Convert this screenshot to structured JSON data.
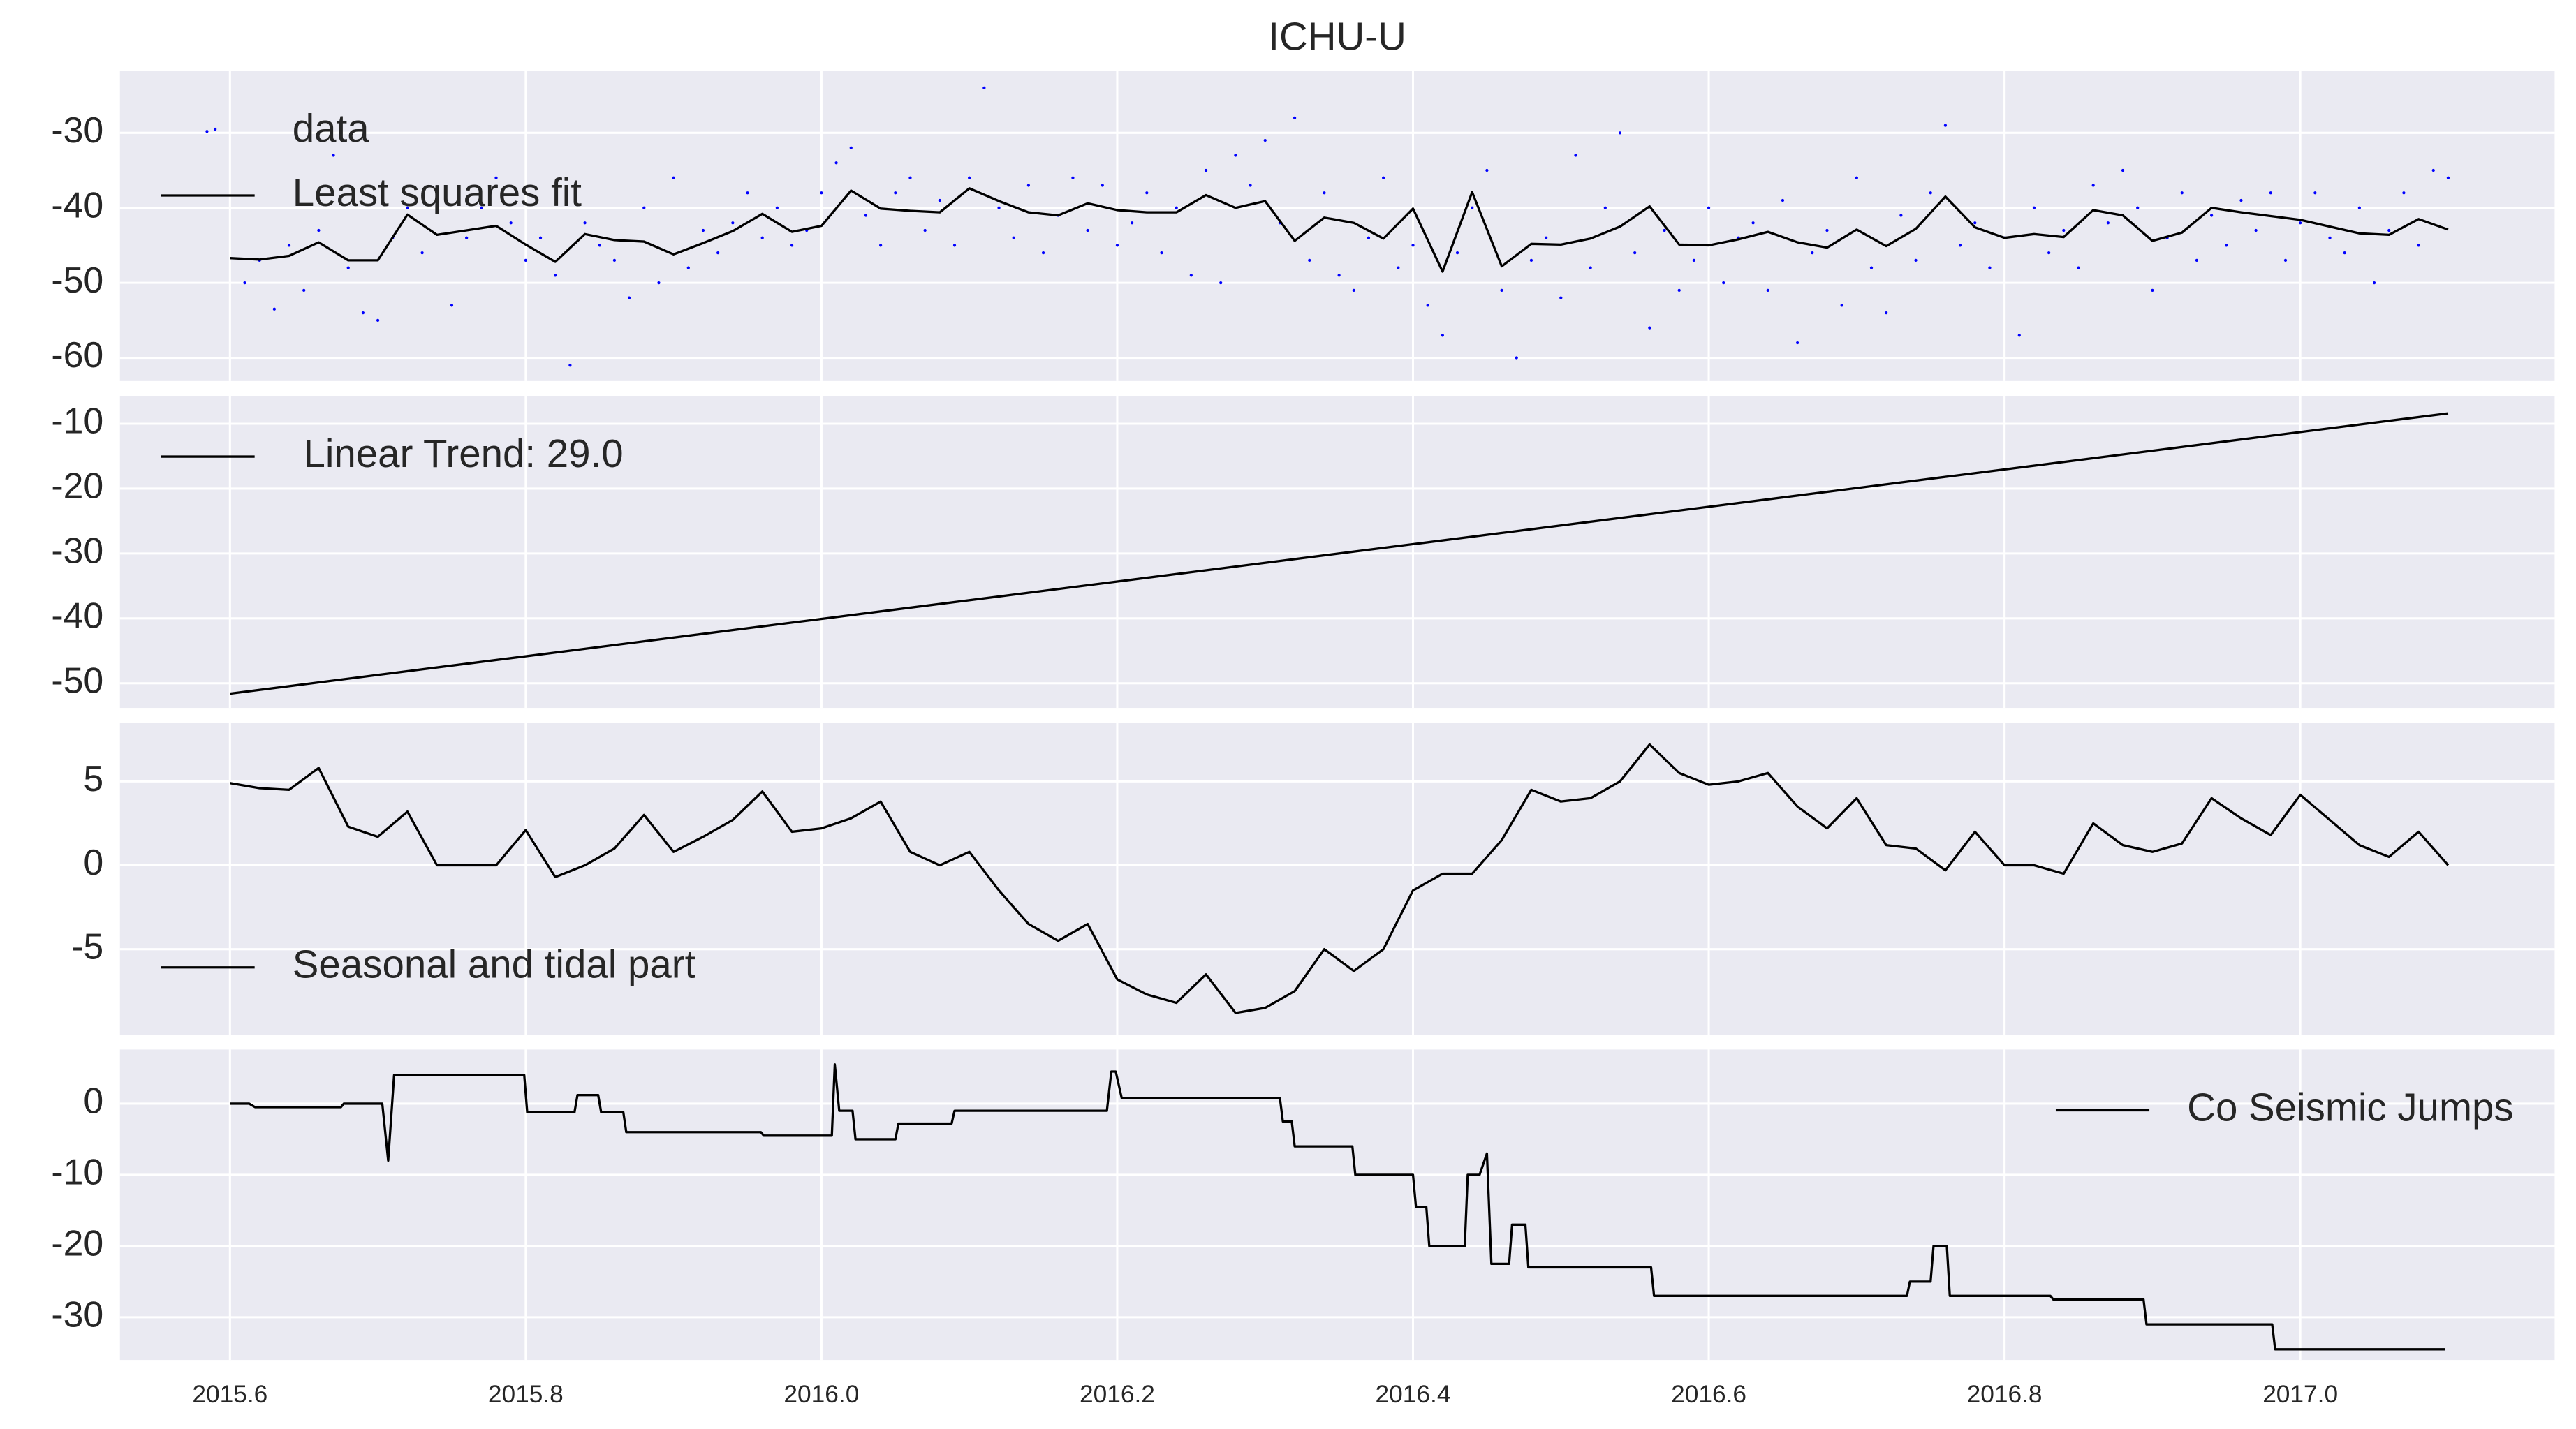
{
  "chart_data": [
    {
      "type": "line",
      "title": "ICHU-U",
      "legend": "upper left",
      "grid": true,
      "xtick_labels": false,
      "xlim": [
        2015.5256,
        2017.172
      ],
      "ylim": [
        -63.1,
        -21.7
      ],
      "xticks": [
        2015.6,
        2015.8,
        {
          "value": 2016,
          "label": "2016.0"
        },
        2016.2,
        2016.4,
        2016.6,
        2016.8,
        {
          "value": 2017,
          "label": "2017.0"
        }
      ],
      "yticks": [
        -30,
        -40,
        -50,
        -60
      ],
      "series": [
        {
          "name": "data",
          "color": "#0000ff",
          "style": "points",
          "x": [
            2015.59,
            2015.61,
            2015.62,
            2015.63,
            2015.64,
            2015.65,
            2015.66,
            2015.67,
            2015.68,
            2015.69,
            2015.7,
            2015.71,
            2015.72,
            2015.73,
            2015.74,
            2015.75,
            2015.76,
            2015.77,
            2015.78,
            2015.79,
            2015.8,
            2015.81,
            2015.82,
            2015.83,
            2015.84,
            2015.85,
            2015.86,
            2015.87,
            2015.88,
            2015.89,
            2015.9,
            2015.91,
            2015.92,
            2015.93,
            2015.94,
            2015.95,
            2015.96,
            2015.97,
            2015.98,
            2015.99,
            2016.0,
            2016.01,
            2016.02,
            2016.03,
            2016.04,
            2016.05,
            2016.06,
            2016.07,
            2016.08,
            2016.09,
            2016.1,
            2016.11,
            2016.12,
            2016.13,
            2016.14,
            2016.15,
            2016.16,
            2016.17,
            2016.18,
            2016.19,
            2016.2,
            2016.21,
            2016.22,
            2016.23,
            2016.24,
            2016.25,
            2016.26,
            2016.27,
            2016.28,
            2016.29,
            2016.3,
            2016.31,
            2016.32,
            2016.33,
            2016.34,
            2016.35,
            2016.36,
            2016.37,
            2016.38,
            2016.39,
            2016.4,
            2016.41,
            2016.42,
            2016.43,
            2016.44,
            2016.45,
            2016.46,
            2016.47,
            2016.48,
            2016.49,
            2016.5,
            2016.51,
            2016.52,
            2016.53,
            2016.54,
            2016.55,
            2016.56,
            2016.57,
            2016.58,
            2016.59,
            2016.6,
            2016.61,
            2016.62,
            2016.63,
            2016.64,
            2016.65,
            2016.66,
            2016.67,
            2016.68,
            2016.69,
            2016.7,
            2016.71,
            2016.72,
            2016.73,
            2016.74,
            2016.75,
            2016.76,
            2016.77,
            2016.78,
            2016.79,
            2016.8,
            2016.81,
            2016.82,
            2016.83,
            2016.84,
            2016.85,
            2016.86,
            2016.87,
            2016.88,
            2016.89,
            2016.9,
            2016.91,
            2016.92,
            2016.93,
            2016.94,
            2016.95,
            2016.96,
            2016.97,
            2016.98,
            2016.99,
            2017.0,
            2017.01,
            2017.02,
            2017.03,
            2017.04,
            2017.05,
            2017.06,
            2017.07,
            2017.08,
            2017.09,
            2017.1
          ],
          "values": [
            -29.5,
            -50,
            -47,
            -53.5,
            -45,
            -51,
            -43,
            -33,
            -48,
            -54,
            -55,
            -44,
            -40,
            -46,
            -38,
            -53,
            -44,
            -40,
            -36,
            -42,
            -47,
            -44,
            -49,
            -61,
            -42,
            -45,
            -47,
            -52,
            -40,
            -50,
            -36,
            -48,
            -43,
            -46,
            -42,
            -38,
            -44,
            -40,
            -45,
            -43,
            -38,
            -34,
            -32,
            -41,
            -45,
            -38,
            -36,
            -43,
            -39,
            -45,
            -36,
            -24,
            -40,
            -44,
            -37,
            -46,
            -41,
            -36,
            -43,
            -37,
            -45,
            -42,
            -38,
            -46,
            -40,
            -49,
            -35,
            -50,
            -33,
            -37,
            -31,
            -42,
            -28,
            -47,
            -38,
            -49,
            -51,
            -44,
            -36,
            -48,
            -45,
            -53,
            -57,
            -46,
            -40,
            -35,
            -51,
            -60,
            -47,
            -44,
            -52,
            -33,
            -48,
            -40,
            -30,
            -46,
            -56,
            -43,
            -51,
            -47,
            -40,
            -50,
            -44,
            -42,
            -51,
            -39,
            -58,
            -46,
            -43,
            -53,
            -36,
            -48,
            -54,
            -41,
            -47,
            -38,
            -29,
            -45,
            -42,
            -48,
            -44,
            -57,
            -40,
            -46,
            -43,
            -48,
            -37,
            -42,
            -35,
            -40,
            -51,
            -44,
            -38,
            -47,
            -41,
            -45,
            -39,
            -43,
            -38,
            -47,
            -42,
            -38,
            -44,
            -46,
            -40,
            -50,
            -43,
            -38,
            -45,
            -35,
            -36
          ]
        },
        {
          "name": "Least squares fit",
          "color": "#000000",
          "style": "line",
          "x": [
            2015.6,
            2015.62,
            2015.64,
            2015.66,
            2015.68,
            2015.7,
            2015.72,
            2015.74,
            2015.76,
            2015.78,
            2015.8,
            2015.82,
            2015.84,
            2015.86,
            2015.88,
            2015.9,
            2015.92,
            2015.94,
            2015.96,
            2015.98,
            2016.0,
            2016.02,
            2016.04,
            2016.06,
            2016.08,
            2016.1,
            2016.12,
            2016.14,
            2016.16,
            2016.18,
            2016.2,
            2016.22,
            2016.24,
            2016.26,
            2016.28,
            2016.3,
            2016.32,
            2016.34,
            2016.36,
            2016.38,
            2016.4,
            2016.42,
            2016.44,
            2016.46,
            2016.48,
            2016.5,
            2016.52,
            2016.54,
            2016.56,
            2016.58,
            2016.6,
            2016.62,
            2016.64,
            2016.66,
            2016.68,
            2016.7,
            2016.72,
            2016.74,
            2016.76,
            2016.78,
            2016.8,
            2016.82,
            2016.84,
            2016.86,
            2016.88,
            2016.9,
            2016.92,
            2016.94,
            2016.96,
            2016.98,
            2017.0,
            2017.02,
            2017.04,
            2017.06,
            2017.08,
            2017.1
          ],
          "values": [
            -46.7,
            -46.9,
            -46.4,
            -44.6,
            -47.0,
            -47.0,
            -40.9,
            -43.6,
            -43.0,
            -42.4,
            -44.9,
            -47.2,
            -43.5,
            -44.3,
            -44.5,
            -46.2,
            -44.7,
            -43.1,
            -40.8,
            -43.2,
            -42.4,
            -37.7,
            -40.1,
            -40.4,
            -40.6,
            -37.4,
            -39.1,
            -40.6,
            -41.0,
            -39.4,
            -40.3,
            -40.6,
            -40.6,
            -38.3,
            -40.0,
            -39.1,
            -44.4,
            -41.3,
            -42.0,
            -44.1,
            -40.1,
            -48.5,
            -37.9,
            -47.8,
            -44.8,
            -44.9,
            -44.1,
            -42.5,
            -39.8,
            -44.9,
            -45.0,
            -44.2,
            -43.2,
            -44.6,
            -45.3,
            -42.9,
            -45.1,
            -42.8,
            -38.5,
            -42.6,
            -44.0,
            -43.5,
            -43.9,
            -40.3,
            -41.0,
            -44.4,
            -43.3,
            -40.0,
            -40.6,
            -41.1,
            -41.6,
            -42.5,
            -43.4,
            -43.6,
            -41.5,
            -42.9
          ]
        }
      ]
    },
    {
      "type": "line",
      "legend": "upper left",
      "grid": true,
      "xtick_labels": false,
      "xlim": [
        2015.5256,
        2017.172
      ],
      "ylim": [
        -53.8,
        -5.7
      ],
      "xticks": [
        2015.6,
        2015.8,
        {
          "value": 2016,
          "label": "2016.0"
        },
        2016.2,
        2016.4,
        2016.6,
        2016.8,
        {
          "value": 2017,
          "label": "2017.0"
        }
      ],
      "yticks": [
        -10,
        -20,
        -30,
        -40,
        -50
      ],
      "series": [
        {
          "name": " Linear Trend: 29.0",
          "color": "#000000",
          "style": "line",
          "x": [
            2015.6,
            2017.1
          ],
          "values": [
            -51.6,
            -8.4
          ]
        }
      ]
    },
    {
      "type": "line",
      "legend": "lower left",
      "grid": true,
      "xtick_labels": false,
      "xlim": [
        2015.5256,
        2017.172
      ],
      "ylim": [
        -10.1,
        8.5
      ],
      "xticks": [
        2015.6,
        2015.8,
        {
          "value": 2016,
          "label": "2016.0"
        },
        2016.2,
        2016.4,
        2016.6,
        2016.8,
        {
          "value": 2017,
          "label": "2017.0"
        }
      ],
      "yticks": [
        5,
        0,
        -5
      ],
      "series": [
        {
          "name": "Seasonal and tidal part",
          "color": "#000000",
          "style": "line",
          "x": [
            2015.6,
            2015.62,
            2015.64,
            2015.66,
            2015.68,
            2015.7,
            2015.72,
            2015.74,
            2015.76,
            2015.78,
            2015.8,
            2015.82,
            2015.84,
            2015.86,
            2015.88,
            2015.9,
            2015.92,
            2015.94,
            2015.96,
            2015.98,
            2016.0,
            2016.02,
            2016.04,
            2016.06,
            2016.08,
            2016.1,
            2016.12,
            2016.14,
            2016.16,
            2016.18,
            2016.2,
            2016.22,
            2016.24,
            2016.26,
            2016.28,
            2016.3,
            2016.32,
            2016.34,
            2016.36,
            2016.38,
            2016.4,
            2016.42,
            2016.44,
            2016.46,
            2016.48,
            2016.5,
            2016.52,
            2016.54,
            2016.56,
            2016.58,
            2016.6,
            2016.62,
            2016.64,
            2016.66,
            2016.68,
            2016.7,
            2016.72,
            2016.74,
            2016.76,
            2016.78,
            2016.8,
            2016.82,
            2016.84,
            2016.86,
            2016.88,
            2016.9,
            2016.92,
            2016.94,
            2016.96,
            2016.98,
            2017.0,
            2017.02,
            2017.04,
            2017.06,
            2017.08,
            2017.1
          ],
          "values": [
            4.9,
            4.6,
            4.5,
            5.8,
            2.3,
            1.7,
            3.2,
            0.0,
            0.0,
            0.0,
            2.1,
            -0.7,
            0.0,
            1.0,
            3.0,
            0.8,
            1.7,
            2.7,
            4.4,
            2.0,
            2.2,
            2.8,
            3.8,
            0.8,
            0.0,
            0.8,
            -1.5,
            -3.5,
            -4.5,
            -3.5,
            -6.8,
            -7.7,
            -8.2,
            -6.5,
            -8.8,
            -8.5,
            -7.5,
            -5.0,
            -6.3,
            -5.0,
            -1.5,
            -0.5,
            -0.5,
            1.5,
            4.5,
            3.8,
            4.0,
            5.0,
            7.2,
            5.5,
            4.8,
            5.0,
            5.5,
            3.5,
            2.2,
            4.0,
            1.2,
            1.0,
            -0.3,
            2.0,
            0.0,
            0.0,
            -0.5,
            2.5,
            1.2,
            0.8,
            1.3,
            4.0,
            2.8,
            1.8,
            4.2,
            2.7,
            1.2,
            0.5,
            2.0,
            0.0
          ]
        }
      ]
    },
    {
      "type": "line",
      "legend": "upper right",
      "grid": true,
      "xtick_labels": true,
      "xlim": [
        2015.5256,
        2017.172
      ],
      "ylim": [
        -36.0,
        7.6
      ],
      "xticks": [
        2015.6,
        2015.8,
        {
          "value": 2016,
          "label": "2016.0"
        },
        2016.2,
        2016.4,
        2016.6,
        2016.8,
        {
          "value": 2017,
          "label": "2017.0"
        }
      ],
      "yticks": [
        0,
        -10,
        -20,
        -30
      ],
      "series": [
        {
          "name": "Co Seismic Jumps",
          "color": "#000000",
          "style": "line",
          "x": [
            2015.6,
            2015.613,
            2015.617,
            2015.675,
            2015.677,
            2015.703,
            2015.707,
            2015.711,
            2015.799,
            2015.801,
            2015.833,
            2015.835,
            2015.849,
            2015.851,
            2015.866,
            2015.868,
            2015.959,
            2015.961,
            2016.007,
            2016.009,
            2016.012,
            2016.021,
            2016.023,
            2016.05,
            2016.052,
            2016.088,
            2016.09,
            2016.193,
            2016.196,
            2016.199,
            2016.203,
            2016.31,
            2016.312,
            2016.318,
            2016.32,
            2016.359,
            2016.361,
            2016.4,
            2016.402,
            2016.409,
            2016.411,
            2016.435,
            2016.437,
            2016.445,
            2016.45,
            2016.453,
            2016.465,
            2016.467,
            2016.476,
            2016.478,
            2016.561,
            2016.563,
            2016.734,
            2016.736,
            2016.75,
            2016.752,
            2016.761,
            2016.763,
            2016.831,
            2016.833,
            2016.894,
            2016.896,
            2016.981,
            2016.983,
            2017.098
          ],
          "values": [
            0,
            0,
            -0.5,
            -0.5,
            0,
            0,
            -8,
            4,
            4,
            -1.2,
            -1.2,
            1.2,
            1.2,
            -1.2,
            -1.2,
            -4,
            -4,
            -4.5,
            -4.5,
            5.5,
            -1,
            -1,
            -5,
            -5,
            -2.8,
            -2.8,
            -1,
            -1,
            4.5,
            4.5,
            0.8,
            0.8,
            -2.5,
            -2.5,
            -6,
            -6,
            -10,
            -10,
            -14.5,
            -14.5,
            -20,
            -20,
            -10,
            -10,
            -7,
            -22.5,
            -22.5,
            -17,
            -17,
            -23,
            -23,
            -27,
            -27,
            -25,
            -25,
            -20,
            -20,
            -27,
            -27,
            -27.5,
            -27.5,
            -31,
            -31,
            -34.5,
            -34.5
          ]
        }
      ]
    }
  ]
}
